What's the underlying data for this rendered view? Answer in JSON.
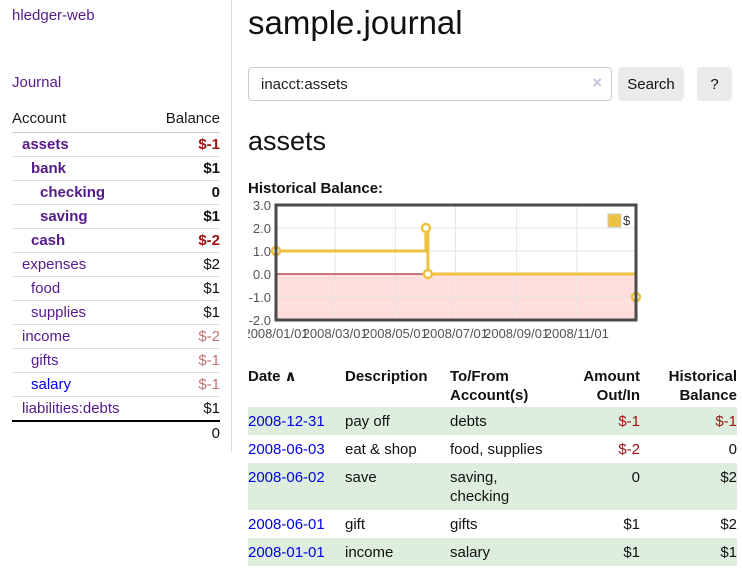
{
  "brand": "hledger-web",
  "nav": {
    "journal": "Journal"
  },
  "sidebar": {
    "header": {
      "account": "Account",
      "balance": "Balance"
    },
    "accounts": [
      {
        "name": "assets",
        "balance": "$-1"
      },
      {
        "name": "bank",
        "balance": "$1"
      },
      {
        "name": "checking",
        "balance": "0"
      },
      {
        "name": "saving",
        "balance": "$1"
      },
      {
        "name": "cash",
        "balance": "$-2"
      },
      {
        "name": "expenses",
        "balance": "$2"
      },
      {
        "name": "food",
        "balance": "$1"
      },
      {
        "name": "supplies",
        "balance": "$1"
      },
      {
        "name": "income",
        "balance": "$-2"
      },
      {
        "name": "gifts",
        "balance": "$-1"
      },
      {
        "name": "salary",
        "balance": "$-1"
      },
      {
        "name": "liabilities:debts",
        "balance": "$1"
      }
    ],
    "total": "0"
  },
  "header": {
    "title": "sample.journal"
  },
  "search": {
    "value": "inacct:assets",
    "clear_icon": "×",
    "search_button": "Search",
    "help_button": "?"
  },
  "account_page": {
    "heading": "assets",
    "chart_title": "Historical Balance:"
  },
  "chart_data": {
    "type": "line",
    "step": true,
    "title": "Historical Balance",
    "legend": "$",
    "legend_position": "top-right",
    "series": [
      {
        "name": "$",
        "points": [
          {
            "date": "2008-01-01",
            "value": 1
          },
          {
            "date": "2008-06-01",
            "value": 2
          },
          {
            "date": "2008-06-03",
            "value": 0
          },
          {
            "date": "2008-12-31",
            "value": -1
          }
        ]
      }
    ],
    "xlim": [
      "2008-01-01",
      "2008-12-31"
    ],
    "ylim": [
      -2,
      3
    ],
    "x_ticks": [
      {
        "date": "2008-01-01",
        "label": "2008/01/01"
      },
      {
        "date": "2008-03-01",
        "label": "2008/03/01"
      },
      {
        "date": "2008-05-01",
        "label": "2008/05/01"
      },
      {
        "date": "2008-07-01",
        "label": "2008/07/01"
      },
      {
        "date": "2008-09-01",
        "label": "2008/09/01"
      },
      {
        "date": "2008-11-01",
        "label": "2008/11/01"
      }
    ],
    "y_ticks": [
      {
        "value": 3,
        "label": "3.0"
      },
      {
        "value": 2,
        "label": "2.0"
      },
      {
        "value": 1,
        "label": "1.0"
      },
      {
        "value": 0,
        "label": "0.0"
      },
      {
        "value": -1,
        "label": "-1.0"
      },
      {
        "value": -2,
        "label": "-2.0"
      }
    ],
    "grid": true,
    "negative_region_shaded": true,
    "colors": {
      "line": "#edc240",
      "point_fill": "#ffffff",
      "negative_fill": "#ffdedb",
      "zero_line": "#8b0000",
      "border": "#4a4a4a",
      "grid": "#e3e3e3",
      "grid_on_fill": "#d8bcbc",
      "tick_text": "#545454",
      "legend_box_border": "#cccccc"
    }
  },
  "register": {
    "headers": {
      "date": "Date",
      "sort_icon": "∧",
      "description": "Description",
      "account": "To/From Account(s)",
      "amount": "Amount Out/In",
      "balance": "Historical Balance"
    },
    "rows": [
      {
        "date": "2008-12-31",
        "description": "pay off",
        "account": "debts",
        "amount": "$-1",
        "balance": "$-1"
      },
      {
        "date": "2008-06-03",
        "description": "eat & shop",
        "account": "food, supplies",
        "amount": "$-2",
        "balance": "0"
      },
      {
        "date": "2008-06-02",
        "description": "save",
        "account": "saving, checking",
        "amount": "0",
        "balance": "$2"
      },
      {
        "date": "2008-06-01",
        "description": "gift",
        "account": "gifts",
        "amount": "$1",
        "balance": "$2"
      },
      {
        "date": "2008-01-01",
        "description": "income",
        "account": "salary",
        "amount": "$1",
        "balance": "$1"
      }
    ]
  }
}
